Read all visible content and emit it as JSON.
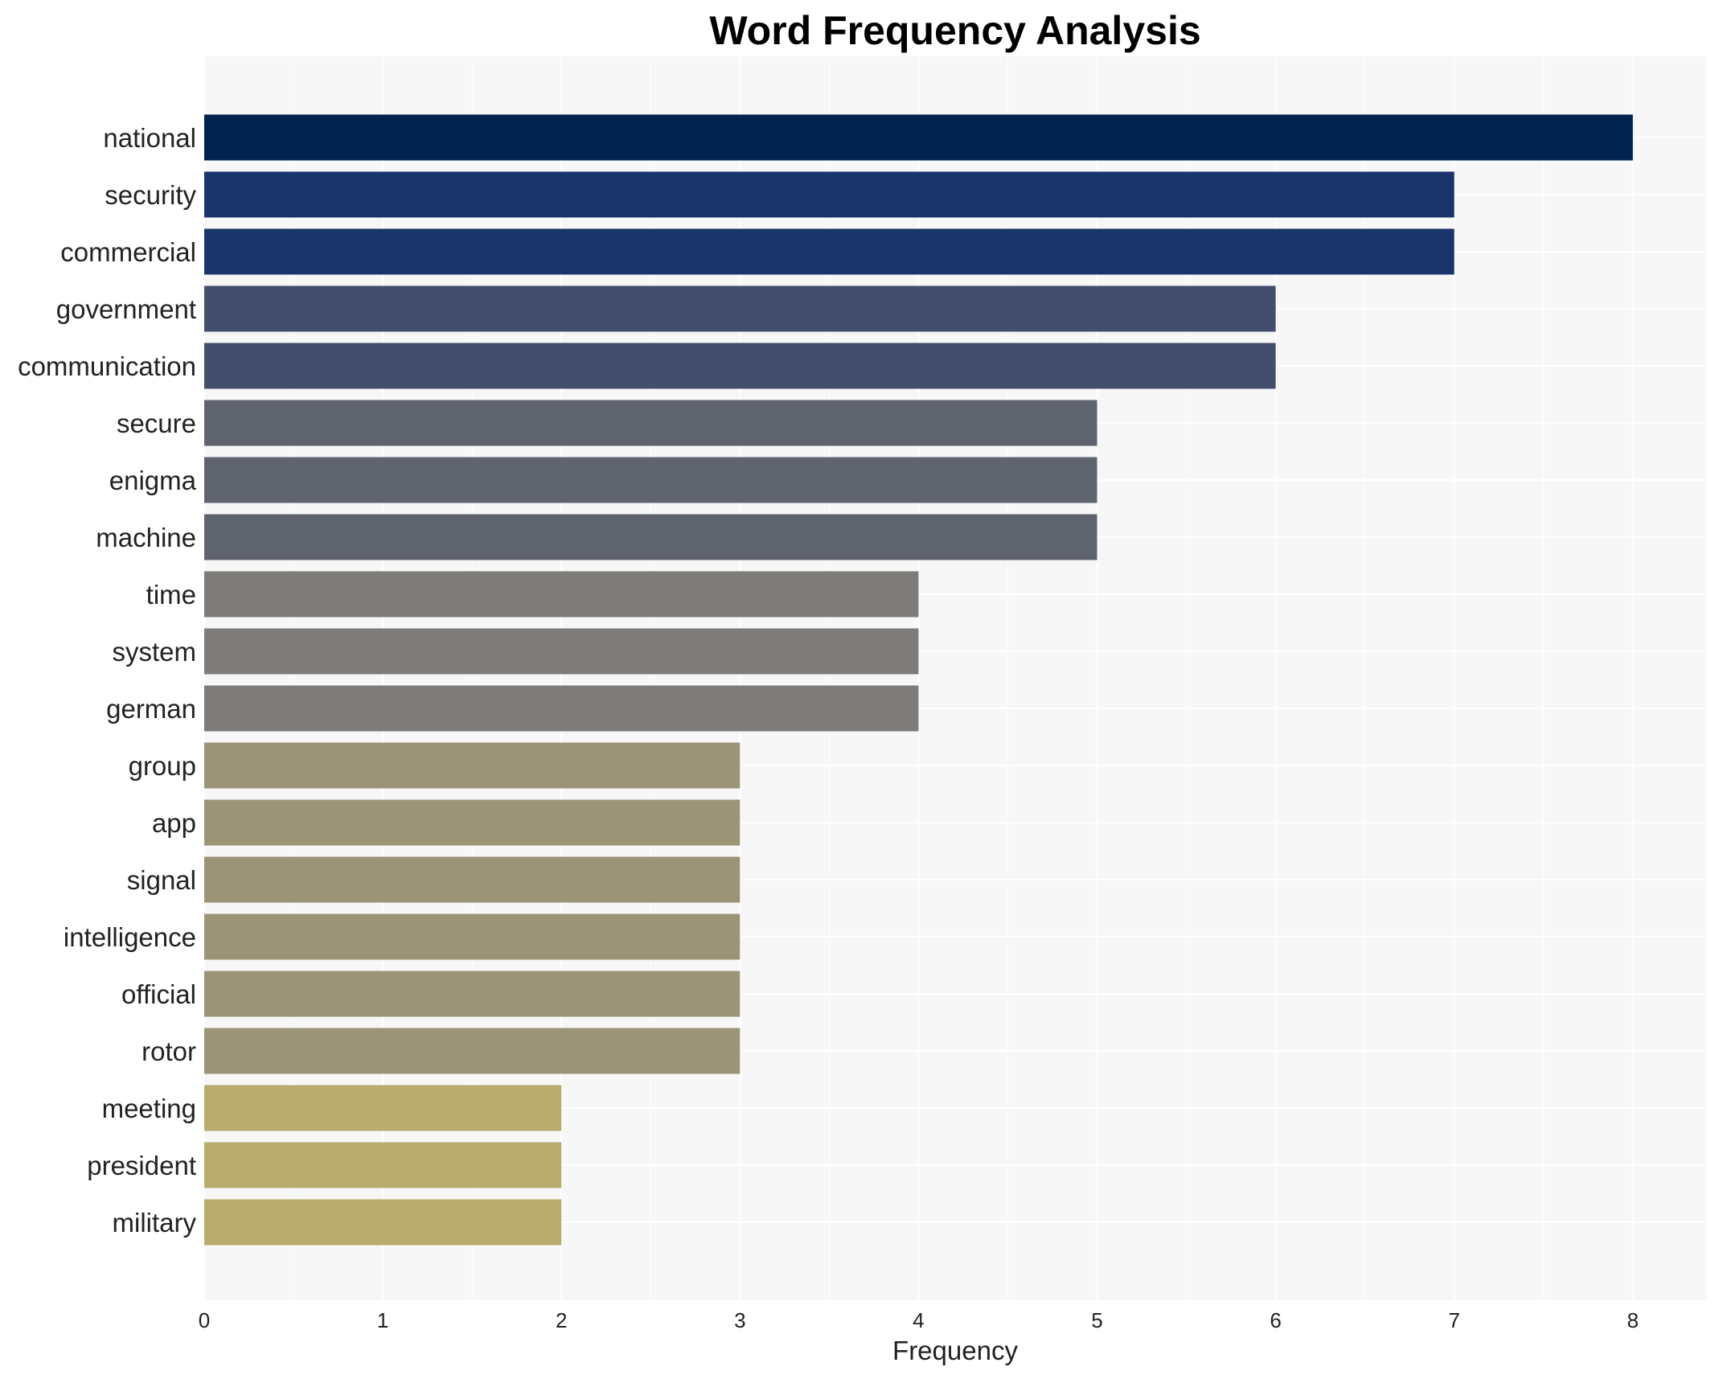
{
  "chart_data": {
    "type": "bar",
    "orientation": "horizontal",
    "title": "Word Frequency Analysis",
    "xlabel": "Frequency",
    "ylabel": "",
    "xlim": [
      0,
      8.4
    ],
    "x_ticks": [
      "0",
      "1",
      "2",
      "3",
      "4",
      "5",
      "6",
      "7",
      "8"
    ],
    "grid": true,
    "legend": "none",
    "categories": [
      "national",
      "security",
      "commercial",
      "government",
      "communication",
      "secure",
      "enigma",
      "machine",
      "time",
      "system",
      "german",
      "group",
      "app",
      "signal",
      "intelligence",
      "official",
      "rotor",
      "meeting",
      "president",
      "military"
    ],
    "values": [
      8,
      7,
      7,
      6,
      6,
      5,
      5,
      5,
      4,
      4,
      4,
      3,
      3,
      3,
      3,
      3,
      3,
      2,
      2,
      2
    ],
    "colors": {
      "8": "#00224e",
      "7": "#19356c",
      "6": "#434e6c",
      "5": "#5f636e",
      "4": "#7d7c78",
      "3": "#9b9477",
      "2": "#b8ac6f"
    },
    "plot_background": "#f7f7f7",
    "grid_color": "#ffffff"
  }
}
